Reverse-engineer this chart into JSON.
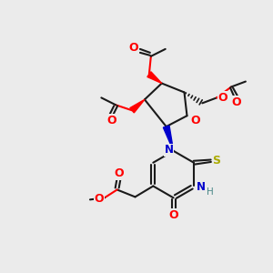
{
  "bg_color": "#ebebeb",
  "bond_color": "#1a1a1a",
  "atom_colors": {
    "O": "#ff0000",
    "N": "#0000cc",
    "S": "#aaaa00",
    "H": "#4a8888",
    "C": "#1a1a1a"
  },
  "lw": 1.5,
  "fs": 8.5
}
